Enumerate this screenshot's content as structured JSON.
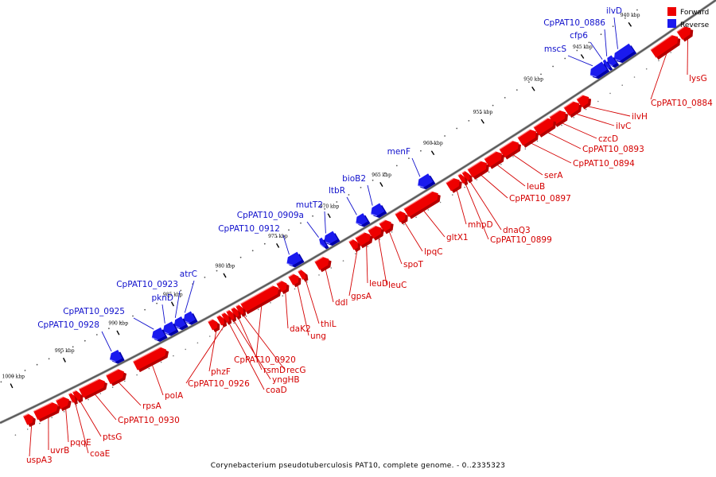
{
  "legend": {
    "forward_label": "Forward",
    "reverse_label": "Reverse",
    "forward_color": "#ee0000",
    "reverse_color": "#1a1aee"
  },
  "caption": "Corynebacterium pseudotuberculosis PAT10, complete genome. - 0..2335323",
  "ticks": [
    "940 kbp",
    "945 kbp",
    "950 kbp",
    "955 kbp",
    "960 kbp",
    "965 kbp",
    "970 kbp",
    "975 kbp",
    "980 kbp",
    "985 kbp",
    "990 kbp",
    "995 kbp",
    "1000 kbp"
  ],
  "forward_genes": [
    "lysG",
    "CpPAT10_0884",
    "ilvH",
    "ilvC",
    "czcD",
    "CpPAT10_0893",
    "CpPAT10_0894",
    "serA",
    "leuB",
    "CpPAT10_0897",
    "dnaQ3",
    "CpPAT10_0899",
    "mhpD",
    "gltX1",
    "lpqC",
    "spoT",
    "leuC",
    "leuD",
    "gpsA",
    "ddl",
    "thiL",
    "ung",
    "daK2",
    "CpPAT10_0920",
    "recG",
    "rsmD",
    "yngHB",
    "coaD",
    "CpPAT10_0926",
    "phzF",
    "polA",
    "rpsA",
    "CpPAT10_0930",
    "ptsG",
    "coaE",
    "pqqE",
    "uvrB",
    "uspA3"
  ],
  "reverse_genes": [
    "ilvD",
    "CpPAT10_0886",
    "cfp6",
    "mscS",
    "menF",
    "bioB2",
    "ltbR",
    "mutT2",
    "CpPAT10_0909a",
    "CpPAT10_0912",
    "atrC",
    "CpPAT10_0923",
    "pknD",
    "CpPAT10_0925",
    "CpPAT10_0928"
  ]
}
